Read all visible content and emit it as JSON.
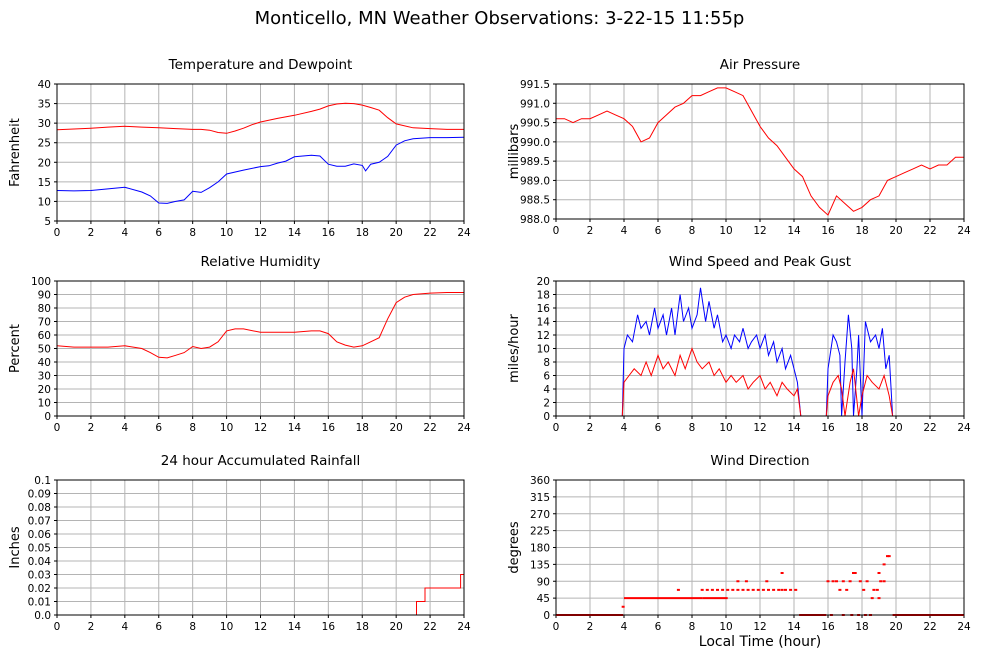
{
  "title": "Monticello, MN Weather Observations: 3-22-15 11:55p",
  "xlabel": "Local Time (hour)",
  "colors": {
    "red": "#ff0000",
    "blue": "#0000ff",
    "grid": "#b4b4b4",
    "frame": "#000000"
  },
  "chart_data": [
    {
      "type": "line",
      "title": "Temperature and Dewpoint",
      "ylabel": "Fahrenheit",
      "xlim": [
        0,
        24
      ],
      "ylim": [
        5,
        40
      ],
      "xticks": [
        "0",
        "2",
        "4",
        "6",
        "8",
        "10",
        "12",
        "14",
        "16",
        "18",
        "20",
        "22",
        "24"
      ],
      "yticks": [
        "5",
        "10",
        "15",
        "20",
        "25",
        "30",
        "35",
        "40"
      ],
      "series": [
        {
          "color": "#ff0000",
          "x": [
            0,
            1,
            2,
            3,
            4,
            5,
            6,
            7,
            8,
            8.5,
            9,
            9.5,
            10,
            10.5,
            11,
            11.5,
            12,
            13,
            14,
            15,
            15.5,
            16,
            16.5,
            17,
            17.5,
            18,
            18.5,
            19,
            19.5,
            20,
            21,
            22,
            23,
            24
          ],
          "y": [
            28.3,
            28.5,
            28.7,
            29,
            29.2,
            29,
            28.8,
            28.6,
            28.4,
            28.4,
            28.2,
            27.6,
            27.4,
            28,
            28.7,
            29.6,
            30.3,
            31.2,
            32,
            33,
            33.6,
            34.4,
            34.9,
            35.1,
            35,
            34.6,
            34,
            33.3,
            31.4,
            29.8,
            28.8,
            28.6,
            28.4,
            28.4
          ]
        },
        {
          "color": "#0000ff",
          "x": [
            0,
            1,
            2,
            3,
            4,
            5,
            5.5,
            6,
            6.5,
            7,
            7.5,
            8,
            8.5,
            9,
            9.5,
            10,
            11,
            12,
            12.5,
            13,
            13.5,
            14,
            15,
            15.5,
            16,
            16.5,
            17,
            17.5,
            18,
            18.2,
            18.5,
            19,
            19.5,
            20,
            20.5,
            21,
            22,
            23,
            24
          ],
          "y": [
            12.8,
            12.7,
            12.8,
            13.2,
            13.6,
            12.4,
            11.4,
            9.6,
            9.5,
            10,
            10.4,
            12.6,
            12.3,
            13.5,
            15,
            17,
            18,
            18.9,
            19.1,
            19.8,
            20.3,
            21.4,
            21.8,
            21.6,
            19.5,
            19,
            19,
            19.6,
            19.2,
            17.8,
            19.5,
            20,
            21.5,
            24.4,
            25.5,
            26,
            26.3,
            26.3,
            26.4
          ]
        }
      ]
    },
    {
      "type": "line",
      "title": "Air Pressure",
      "ylabel": "millibars",
      "xlim": [
        0,
        24
      ],
      "ylim": [
        988.0,
        991.5
      ],
      "xticks": [
        "0",
        "2",
        "4",
        "6",
        "8",
        "10",
        "12",
        "14",
        "16",
        "18",
        "20",
        "22",
        "24"
      ],
      "yticks": [
        "988.0",
        "988.5",
        "989.0",
        "989.5",
        "990.0",
        "990.5",
        "991.0",
        "991.5"
      ],
      "series": [
        {
          "color": "#ff0000",
          "x": [
            0,
            0.5,
            1,
            1.5,
            2,
            2.5,
            3,
            3.5,
            4,
            4.5,
            5,
            5.5,
            6,
            6.5,
            7,
            7.5,
            8,
            8.5,
            9,
            9.5,
            10,
            10.5,
            11,
            11.5,
            12,
            12.5,
            13,
            13.5,
            14,
            14.5,
            15,
            15.5,
            16,
            16.5,
            17,
            17.5,
            18,
            18.5,
            19,
            19.5,
            20,
            20.5,
            21,
            21.5,
            22,
            22.5,
            23,
            23.5,
            24
          ],
          "y": [
            990.6,
            990.6,
            990.5,
            990.6,
            990.6,
            990.7,
            990.8,
            990.7,
            990.6,
            990.4,
            990.0,
            990.1,
            990.5,
            990.7,
            990.9,
            991.0,
            991.2,
            991.2,
            991.3,
            991.4,
            991.4,
            991.3,
            991.2,
            990.8,
            990.4,
            990.1,
            989.9,
            989.6,
            989.3,
            989.1,
            988.6,
            988.3,
            988.1,
            988.6,
            988.4,
            988.2,
            988.3,
            988.5,
            988.6,
            989.0,
            989.1,
            989.2,
            989.3,
            989.4,
            989.3,
            989.4,
            989.4,
            989.6,
            989.6
          ]
        }
      ]
    },
    {
      "type": "line",
      "title": "Relative Humidity",
      "ylabel": "Percent",
      "xlim": [
        0,
        24
      ],
      "ylim": [
        0,
        100
      ],
      "xticks": [
        "0",
        "2",
        "4",
        "6",
        "8",
        "10",
        "12",
        "14",
        "16",
        "18",
        "20",
        "22",
        "24"
      ],
      "yticks": [
        "0",
        "10",
        "20",
        "30",
        "40",
        "50",
        "60",
        "70",
        "80",
        "90",
        "100"
      ],
      "series": [
        {
          "color": "#ff0000",
          "x": [
            0,
            1,
            2,
            3,
            4,
            5,
            5.5,
            6,
            6.5,
            7,
            7.5,
            8,
            8.5,
            9,
            9.5,
            10,
            10.5,
            11,
            12,
            13,
            14,
            15,
            15.5,
            16,
            16.5,
            17,
            17.5,
            18,
            18.5,
            19,
            19.5,
            20,
            20.5,
            21,
            22,
            23,
            24
          ],
          "y": [
            52,
            51,
            51,
            51,
            52,
            50,
            47,
            43.5,
            43,
            45,
            47,
            51.5,
            50,
            51,
            55,
            63,
            64.5,
            64.5,
            62,
            62,
            62,
            63,
            63,
            61,
            55,
            52.5,
            51,
            52,
            55,
            58,
            72,
            84,
            88,
            90,
            91,
            91.5,
            91.5
          ]
        }
      ]
    },
    {
      "type": "line",
      "title": "Wind Speed and Peak Gust",
      "ylabel": "miles/hour",
      "xlim": [
        0,
        24
      ],
      "ylim": [
        0,
        20
      ],
      "xticks": [
        "0",
        "2",
        "4",
        "6",
        "8",
        "10",
        "12",
        "14",
        "16",
        "18",
        "20",
        "22",
        "24"
      ],
      "yticks": [
        "0",
        "2",
        "4",
        "6",
        "8",
        "10",
        "12",
        "14",
        "16",
        "18",
        "20"
      ],
      "series": [
        {
          "color": "#0000ff",
          "x": [
            0,
            3.9,
            4.0,
            4.2,
            4.5,
            4.8,
            5.0,
            5.3,
            5.5,
            5.8,
            6.0,
            6.3,
            6.5,
            6.8,
            7.0,
            7.3,
            7.5,
            7.8,
            8.0,
            8.3,
            8.5,
            8.8,
            9.0,
            9.3,
            9.5,
            9.8,
            10.0,
            10.3,
            10.5,
            10.8,
            11.0,
            11.3,
            11.5,
            11.8,
            12.0,
            12.3,
            12.5,
            12.8,
            13.0,
            13.3,
            13.5,
            13.8,
            14.0,
            14.2,
            14.4,
            15.9,
            16.0,
            16.3,
            16.5,
            16.7,
            16.8,
            17.0,
            17.2,
            17.4,
            17.5,
            17.7,
            17.8,
            18.0,
            18.2,
            18.5,
            18.8,
            19.0,
            19.2,
            19.4,
            19.6,
            19.8,
            24
          ],
          "y": [
            0,
            0,
            10,
            12,
            11,
            15,
            13,
            14,
            12,
            16,
            13,
            15,
            12,
            16,
            12,
            18,
            14,
            16,
            13,
            15,
            19,
            14,
            17,
            13,
            15,
            11,
            12,
            10,
            12,
            11,
            13,
            10,
            11,
            12,
            10,
            12,
            9,
            11,
            8,
            10,
            7,
            9,
            7,
            5,
            0,
            0,
            7,
            12,
            11,
            9,
            0,
            8,
            15,
            10,
            0,
            7,
            12,
            0,
            14,
            11,
            12,
            10,
            13,
            7,
            9,
            0,
            0
          ]
        },
        {
          "color": "#ff0000",
          "x": [
            0,
            3.9,
            4.0,
            4.3,
            4.6,
            5.0,
            5.3,
            5.6,
            6.0,
            6.3,
            6.6,
            7.0,
            7.3,
            7.6,
            8.0,
            8.3,
            8.6,
            9.0,
            9.3,
            9.6,
            10.0,
            10.3,
            10.6,
            11.0,
            11.3,
            11.6,
            12.0,
            12.3,
            12.6,
            13.0,
            13.3,
            13.6,
            14.0,
            14.2,
            14.4,
            15.9,
            16.0,
            16.3,
            16.6,
            16.8,
            17.0,
            17.3,
            17.5,
            17.8,
            18.0,
            18.3,
            18.6,
            19.0,
            19.3,
            19.6,
            19.8,
            24
          ],
          "y": [
            0,
            0,
            5,
            6,
            7,
            6,
            8,
            6,
            9,
            7,
            8,
            6,
            9,
            7,
            10,
            8,
            7,
            8,
            6,
            7,
            5,
            6,
            5,
            6,
            4,
            5,
            6,
            4,
            5,
            3,
            5,
            4,
            3,
            4,
            0,
            0,
            3,
            5,
            6,
            4,
            0,
            5,
            7,
            0,
            3,
            6,
            5,
            4,
            6,
            3,
            0,
            0
          ]
        }
      ]
    },
    {
      "type": "line",
      "title": "24 hour Accumulated Rainfall",
      "ylabel": "Inches",
      "xlim": [
        0,
        24
      ],
      "ylim": [
        0,
        0.1
      ],
      "xticks": [
        "0",
        "2",
        "4",
        "6",
        "8",
        "10",
        "12",
        "14",
        "16",
        "18",
        "20",
        "22",
        "24"
      ],
      "yticks": [
        "0.0",
        "0.01",
        "0.02",
        "0.03",
        "0.04",
        "0.05",
        "0.06",
        "0.07",
        "0.08",
        "0.09",
        "0.1"
      ],
      "series": [
        {
          "color": "#ff0000",
          "x": [
            0,
            21.2,
            21.2,
            21.7,
            21.7,
            23.8,
            23.8,
            24
          ],
          "y": [
            0,
            0,
            0.01,
            0.01,
            0.02,
            0.02,
            0.03,
            0.03
          ]
        }
      ]
    },
    {
      "type": "scatter",
      "title": "Wind Direction",
      "ylabel": "degrees",
      "xlim": [
        0,
        24
      ],
      "ylim": [
        0,
        360
      ],
      "xticks": [
        "0",
        "2",
        "4",
        "6",
        "8",
        "10",
        "12",
        "14",
        "16",
        "18",
        "20",
        "22",
        "24"
      ],
      "yticks": [
        "0",
        "45",
        "90",
        "135",
        "180",
        "225",
        "270",
        "315",
        "360"
      ],
      "series": [
        {
          "color": "#ff0000",
          "segments": [
            {
              "x0": 0,
              "x1": 3.95,
              "y": 0
            },
            {
              "x0": 4.0,
              "x1": 8.6,
              "y": 45
            },
            {
              "x0": 8.6,
              "x1": 10.1,
              "y": 45
            },
            {
              "x0": 14.3,
              "x1": 15.9,
              "y": 0
            },
            {
              "x0": 19.8,
              "x1": 24,
              "y": 0
            }
          ],
          "x": [
            3.95,
            7.2,
            8.6,
            8.9,
            9.2,
            9.5,
            9.8,
            10.1,
            10.4,
            10.7,
            11.0,
            11.3,
            11.6,
            11.9,
            12.2,
            12.5,
            12.8,
            13.1,
            13.3,
            13.5,
            13.8,
            14.1,
            10.7,
            11.2,
            12.4,
            13.3,
            16.0,
            16.3,
            16.5,
            16.7,
            16.9,
            17.1,
            17.3,
            17.5,
            17.6,
            17.9,
            18.1,
            18.3,
            18.6,
            18.9,
            19.1,
            19.3,
            19.5,
            19.6,
            19.0,
            19.3,
            19.0,
            16.2,
            16.9,
            17.4,
            17.8,
            18.2,
            18.5,
            18.7
          ],
          "y": [
            22,
            67,
            67,
            67,
            67,
            67,
            67,
            67,
            67,
            67,
            67,
            67,
            67,
            67,
            67,
            67,
            67,
            67,
            67,
            67,
            67,
            67,
            90,
            90,
            90,
            112,
            90,
            90,
            90,
            67,
            90,
            67,
            90,
            112,
            112,
            90,
            67,
            90,
            45,
            67,
            90,
            90,
            157,
            157,
            112,
            135,
            45,
            0,
            0,
            0,
            0,
            0,
            0,
            67
          ]
        }
      ]
    }
  ]
}
